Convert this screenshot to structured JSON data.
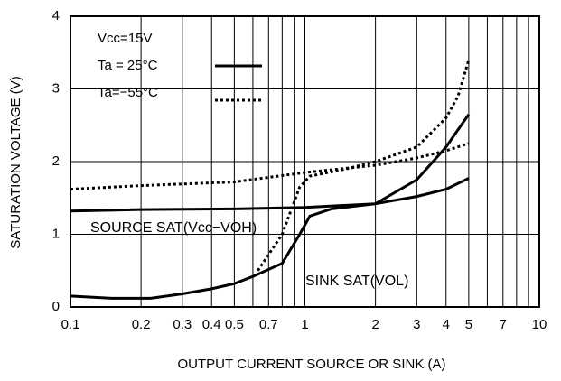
{
  "chart_data": {
    "type": "line",
    "x_label": "OUTPUT CURRENT SOURCE OR SINK (A)",
    "y_label": "SATURATION VOLTAGE (V)",
    "xlim": [
      0.1,
      10
    ],
    "ylim": [
      0,
      4
    ],
    "xscale": "log",
    "grid": true,
    "xticks": [
      0.1,
      0.2,
      0.3,
      0.4,
      0.5,
      0.7,
      1,
      2,
      3,
      4,
      5,
      7,
      10
    ],
    "x_minor_ticks": [
      0.6,
      0.8,
      0.9,
      6,
      8,
      9
    ],
    "yticks": [
      0,
      1,
      2,
      3,
      4
    ],
    "legend_title": "Vcc=15V",
    "legend": [
      {
        "name": "Ta = 25°C",
        "dash": "solid"
      },
      {
        "name": "Ta=−55°C",
        "dash": "dotted"
      }
    ],
    "annotations": [
      "SOURCE SAT(Vcc−VOH)",
      "SINK SAT(VOL)"
    ],
    "series": [
      {
        "color": "#000000",
        "dash": "solid",
        "x": [
          0.1,
          0.2,
          0.5,
          1,
          2,
          3,
          4,
          5
        ],
        "values": [
          1.32,
          1.34,
          1.35,
          1.37,
          1.42,
          1.52,
          1.62,
          1.77
        ]
      },
      {
        "color": "#000000",
        "dash": "dotted",
        "x": [
          0.1,
          0.2,
          0.5,
          1,
          2,
          3,
          4,
          5
        ],
        "values": [
          1.62,
          1.67,
          1.72,
          1.85,
          1.95,
          2.05,
          2.15,
          2.25
        ]
      },
      {
        "color": "#000000",
        "dash": "solid",
        "x": [
          0.1,
          0.15,
          0.22,
          0.3,
          0.4,
          0.5,
          0.6,
          0.8,
          0.95,
          1.05,
          1.3,
          2,
          3,
          4,
          5
        ],
        "values": [
          0.15,
          0.12,
          0.12,
          0.18,
          0.25,
          0.32,
          0.42,
          0.6,
          1.0,
          1.25,
          1.35,
          1.42,
          1.75,
          2.2,
          2.65
        ]
      },
      {
        "color": "#000000",
        "dash": "dotted",
        "x": [
          0.63,
          0.8,
          0.95,
          1.05,
          1.5,
          2,
          3,
          4,
          4.5,
          5
        ],
        "values": [
          0.5,
          1.0,
          1.65,
          1.8,
          1.9,
          2.0,
          2.2,
          2.6,
          2.9,
          3.4
        ]
      }
    ]
  }
}
